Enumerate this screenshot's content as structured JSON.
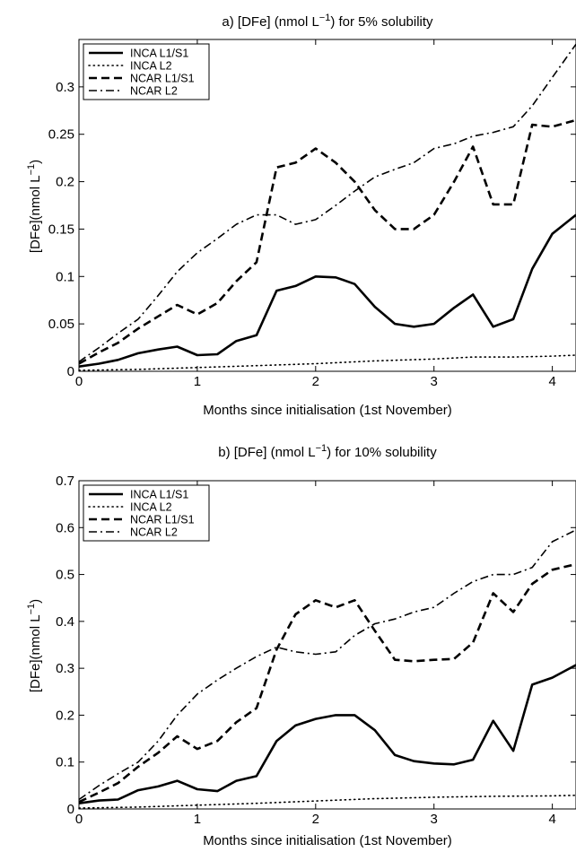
{
  "chart_data": [
    {
      "type": "line",
      "title_pre": "a) [DFe] (nmol L",
      "title_sup": "−1",
      "title_post": ") for 5% solubility",
      "xlabel": "Months since initialisation (1st November)",
      "ylabel_pre": "[DFe](nmol L",
      "ylabel_sup": "−1",
      "ylabel_post": ")",
      "xlim": [
        0,
        4.2
      ],
      "ylim": [
        0,
        0.35
      ],
      "xticks": [
        0,
        1,
        2,
        3,
        4
      ],
      "xtick_labels": [
        "0",
        "1",
        "2",
        "3",
        "4"
      ],
      "yticks": [
        0,
        0.05,
        0.1,
        0.15,
        0.2,
        0.25,
        0.3
      ],
      "ytick_labels": [
        "0",
        "0.05",
        "0.1",
        "0.15",
        "0.2",
        "0.25",
        "0.3"
      ],
      "grid": false,
      "legend_position": "top-left",
      "series": [
        {
          "name": "INCA L1/S1",
          "style": "solid",
          "x": [
            0,
            0.17,
            0.33,
            0.5,
            0.67,
            0.83,
            1.0,
            1.17,
            1.33,
            1.5,
            1.67,
            1.83,
            2.0,
            2.17,
            2.33,
            2.5,
            2.67,
            2.83,
            3.0,
            3.17,
            3.33,
            3.5,
            3.67,
            3.83,
            4.0,
            4.2
          ],
          "y": [
            0.005,
            0.008,
            0.012,
            0.019,
            0.023,
            0.026,
            0.017,
            0.018,
            0.032,
            0.038,
            0.085,
            0.09,
            0.1,
            0.099,
            0.092,
            0.068,
            0.05,
            0.047,
            0.05,
            0.067,
            0.081,
            0.047,
            0.055,
            0.108,
            0.145,
            0.165
          ]
        },
        {
          "name": "INCA L2",
          "style": "dotted",
          "x": [
            0,
            0.5,
            1.0,
            1.5,
            2.0,
            2.5,
            3.0,
            3.33,
            3.67,
            4.0,
            4.2
          ],
          "y": [
            0.001,
            0.002,
            0.004,
            0.006,
            0.008,
            0.011,
            0.013,
            0.015,
            0.015,
            0.016,
            0.017
          ]
        },
        {
          "name": "NCAR L1/S1",
          "style": "dashed",
          "x": [
            0,
            0.17,
            0.33,
            0.5,
            0.67,
            0.83,
            1.0,
            1.17,
            1.33,
            1.5,
            1.67,
            1.83,
            2.0,
            2.17,
            2.33,
            2.5,
            2.67,
            2.83,
            3.0,
            3.17,
            3.33,
            3.5,
            3.67,
            3.83,
            4.0,
            4.2
          ],
          "y": [
            0.008,
            0.02,
            0.03,
            0.045,
            0.058,
            0.07,
            0.06,
            0.072,
            0.095,
            0.115,
            0.215,
            0.22,
            0.235,
            0.22,
            0.2,
            0.17,
            0.15,
            0.15,
            0.165,
            0.2,
            0.237,
            0.176,
            0.176,
            0.26,
            0.258,
            0.265
          ]
        },
        {
          "name": "NCAR L2",
          "style": "dashdot",
          "x": [
            0,
            0.17,
            0.33,
            0.5,
            0.67,
            0.83,
            1.0,
            1.17,
            1.33,
            1.5,
            1.67,
            1.83,
            2.0,
            2.17,
            2.33,
            2.5,
            2.67,
            2.83,
            3.0,
            3.17,
            3.33,
            3.5,
            3.67,
            3.83,
            4.0,
            4.2
          ],
          "y": [
            0.01,
            0.025,
            0.04,
            0.055,
            0.08,
            0.105,
            0.125,
            0.14,
            0.155,
            0.165,
            0.165,
            0.155,
            0.16,
            0.175,
            0.19,
            0.205,
            0.213,
            0.22,
            0.235,
            0.24,
            0.248,
            0.252,
            0.258,
            0.28,
            0.31,
            0.345
          ]
        }
      ]
    },
    {
      "type": "line",
      "title_pre": "b) [DFe] (nmol L",
      "title_sup": "−1",
      "title_post": ") for 10% solubility",
      "xlabel": "Months since initialisation (1st November)",
      "ylabel_pre": "[DFe](nmol L",
      "ylabel_sup": "−1",
      "ylabel_post": ")",
      "xlim": [
        0,
        4.2
      ],
      "ylim": [
        0,
        0.7
      ],
      "xticks": [
        0,
        1,
        2,
        3,
        4
      ],
      "xtick_labels": [
        "0",
        "1",
        "2",
        "3",
        "4"
      ],
      "yticks": [
        0,
        0.1,
        0.2,
        0.3,
        0.4,
        0.5,
        0.6,
        0.7
      ],
      "ytick_labels": [
        "0",
        "0.1",
        "0.2",
        "0.3",
        "0.4",
        "0.5",
        "0.6",
        "0.7"
      ],
      "grid": false,
      "legend_position": "top-left",
      "series": [
        {
          "name": "INCA L1/S1",
          "style": "solid",
          "x": [
            0,
            0.17,
            0.33,
            0.5,
            0.67,
            0.83,
            1.0,
            1.17,
            1.33,
            1.5,
            1.67,
            1.83,
            2.0,
            2.17,
            2.33,
            2.5,
            2.67,
            2.83,
            3.0,
            3.17,
            3.33,
            3.5,
            3.67,
            3.83,
            4.0,
            4.2
          ],
          "y": [
            0.012,
            0.018,
            0.02,
            0.04,
            0.048,
            0.06,
            0.042,
            0.038,
            0.06,
            0.07,
            0.145,
            0.178,
            0.192,
            0.2,
            0.2,
            0.168,
            0.115,
            0.102,
            0.097,
            0.095,
            0.105,
            0.188,
            0.124,
            0.265,
            0.28,
            0.307
          ]
        },
        {
          "name": "INCA L2",
          "style": "dotted",
          "x": [
            0,
            0.5,
            1.0,
            1.5,
            2.0,
            2.5,
            3.0,
            3.5,
            4.0,
            4.2
          ],
          "y": [
            0.002,
            0.004,
            0.008,
            0.012,
            0.017,
            0.022,
            0.025,
            0.027,
            0.028,
            0.029
          ]
        },
        {
          "name": "NCAR L1/S1",
          "style": "dashed",
          "x": [
            0,
            0.17,
            0.33,
            0.5,
            0.67,
            0.83,
            1.0,
            1.17,
            1.33,
            1.5,
            1.67,
            1.83,
            2.0,
            2.17,
            2.33,
            2.5,
            2.67,
            2.83,
            3.0,
            3.17,
            3.33,
            3.5,
            3.67,
            3.83,
            4.0,
            4.2
          ],
          "y": [
            0.015,
            0.035,
            0.055,
            0.09,
            0.12,
            0.155,
            0.128,
            0.145,
            0.185,
            0.215,
            0.34,
            0.415,
            0.445,
            0.43,
            0.445,
            0.38,
            0.318,
            0.315,
            0.318,
            0.32,
            0.355,
            0.46,
            0.42,
            0.48,
            0.51,
            0.522
          ]
        },
        {
          "name": "NCAR L2",
          "style": "dashdot",
          "x": [
            0,
            0.17,
            0.33,
            0.5,
            0.67,
            0.83,
            1.0,
            1.17,
            1.33,
            1.5,
            1.67,
            1.83,
            2.0,
            2.17,
            2.33,
            2.5,
            2.67,
            2.83,
            3.0,
            3.17,
            3.33,
            3.5,
            3.67,
            3.83,
            4.0,
            4.2
          ],
          "y": [
            0.02,
            0.05,
            0.075,
            0.1,
            0.145,
            0.2,
            0.245,
            0.275,
            0.3,
            0.325,
            0.345,
            0.335,
            0.33,
            0.335,
            0.37,
            0.395,
            0.405,
            0.42,
            0.43,
            0.46,
            0.485,
            0.5,
            0.5,
            0.515,
            0.57,
            0.595
          ]
        }
      ]
    }
  ]
}
